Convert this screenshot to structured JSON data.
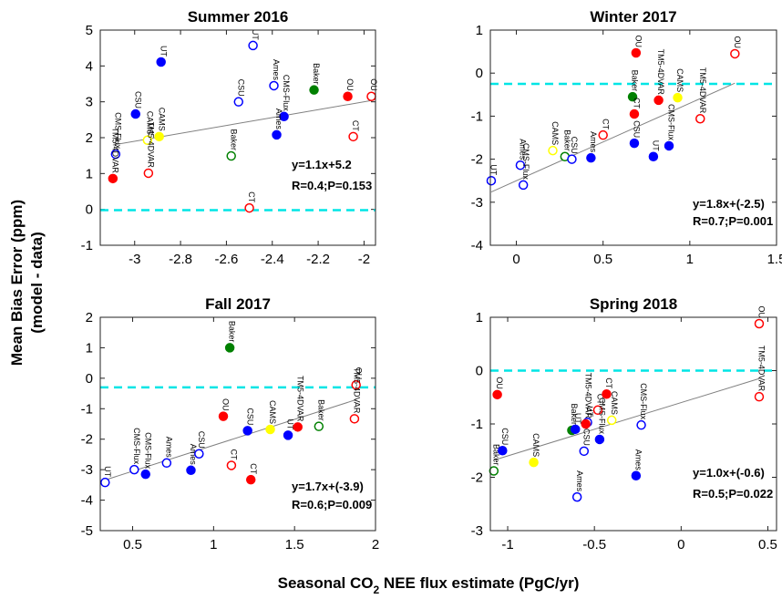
{
  "chart_data": [
    {
      "type": "scatter",
      "title": "Summer 2016",
      "xlim": [
        -3.15,
        -1.95
      ],
      "ylim": [
        -1,
        5
      ],
      "xticks": [
        -3,
        -2.8,
        -2.6,
        -2.4,
        -2.2,
        -2
      ],
      "yticks": [
        -1,
        0,
        1,
        2,
        3,
        4,
        5
      ],
      "labels": [
        "UT",
        "UT",
        "CSU",
        "CMS-Flux",
        "TM5-4DVAR",
        "CAMS",
        "CAMS",
        "TM5-4DVAR",
        "CSU",
        "Ames",
        "Baker",
        "CMS-Flux",
        "Ames",
        "Baker",
        "CT",
        "OU",
        "OU",
        "CT"
      ],
      "x": [
        -2.885,
        -2.484,
        -2.996,
        -3.083,
        -3.095,
        -2.944,
        -2.893,
        -2.94,
        -2.547,
        -2.393,
        -2.218,
        -2.349,
        -2.381,
        -2.579,
        -2.5,
        -2.071,
        -1.968,
        -2.047
      ],
      "y": [
        4.11,
        4.57,
        2.66,
        1.54,
        0.86,
        1.93,
        2.03,
        1.01,
        3.0,
        3.45,
        3.33,
        2.59,
        2.08,
        1.49,
        0.04,
        3.15,
        3.15,
        2.03
      ],
      "colors": [
        "#0000ff",
        "#0000ff",
        "#0000ff",
        "#0000ff",
        "#ff0000",
        "#ffff00",
        "#ffff00",
        "#ff0000",
        "#0000ff",
        "#0000ff",
        "#008000",
        "#0000ff",
        "#0000ff",
        "#008000",
        "#ff0000",
        "#ff0000",
        "#ff0000",
        "#ff0000"
      ],
      "filled": [
        true,
        false,
        true,
        false,
        true,
        false,
        true,
        false,
        false,
        false,
        true,
        true,
        true,
        false,
        false,
        true,
        false,
        false
      ],
      "fit_slope": 1.1,
      "fit_intercept": 5.2,
      "fit_color": "#808080",
      "fit_label": "y=1.1x+5.2",
      "stats_label": "R=0.4;P=0.153",
      "reference_y": -0.02,
      "reference_color": "#00e5e5"
    },
    {
      "type": "scatter",
      "title": "Winter 2017",
      "xlim": [
        -0.15,
        1.5
      ],
      "ylim": [
        -4,
        1
      ],
      "xticks": [
        0,
        0.5,
        1,
        1.5
      ],
      "yticks": [
        -4,
        -3,
        -2,
        -1,
        0,
        1
      ],
      "labels": [
        "UT",
        "Ames",
        "CMS-Flux",
        "CAMS",
        "Baker",
        "CSU",
        "CT",
        "Ames",
        "OU",
        "Baker",
        "CT",
        "CSU",
        "TM5-4DVAR",
        "UT",
        "CAMS",
        "CMS-Flux",
        "TM5-4DVAR",
        "OU"
      ],
      "x": [
        -0.145,
        0.023,
        0.04,
        0.21,
        0.28,
        0.32,
        0.5,
        0.43,
        0.69,
        0.67,
        0.68,
        0.68,
        0.82,
        0.79,
        0.93,
        0.88,
        1.06,
        1.26
      ],
      "y": [
        -2.5,
        -2.14,
        -2.6,
        -1.8,
        -1.94,
        -2.0,
        -1.44,
        -1.97,
        0.47,
        -0.55,
        -0.95,
        -1.63,
        -0.63,
        -1.94,
        -0.57,
        -1.69,
        -1.06,
        0.45
      ],
      "colors": [
        "#0000ff",
        "#0000ff",
        "#0000ff",
        "#ffff00",
        "#008000",
        "#0000ff",
        "#ff0000",
        "#0000ff",
        "#ff0000",
        "#008000",
        "#ff0000",
        "#0000ff",
        "#ff0000",
        "#0000ff",
        "#ffff00",
        "#0000ff",
        "#ff0000",
        "#ff0000"
      ],
      "filled": [
        false,
        false,
        false,
        false,
        false,
        false,
        false,
        true,
        true,
        true,
        true,
        true,
        true,
        true,
        true,
        true,
        false,
        false
      ],
      "fit_slope": 1.8,
      "fit_intercept": -2.5,
      "fit_color": "#808080",
      "fit_label": "y=1.8x+(-2.5)",
      "stats_label": "R=0.7;P=0.001",
      "reference_y": -0.25,
      "reference_color": "#00e5e5"
    },
    {
      "type": "scatter",
      "title": "Fall 2017",
      "xlim": [
        0.3,
        2
      ],
      "ylim": [
        -5,
        2
      ],
      "xticks": [
        0.5,
        1,
        1.5,
        2
      ],
      "yticks": [
        -5,
        -4,
        -3,
        -2,
        -1,
        0,
        1,
        2
      ],
      "labels": [
        "UT",
        "CMS-Flux",
        "CMS-Flux",
        "Ames",
        "Ames",
        "CSU",
        "OU",
        "Baker",
        "CT",
        "CT",
        "CSU",
        "CAMS",
        "UT",
        "TM5-4DVAR",
        "Baker",
        "OU",
        "TM5-4DVAR"
      ],
      "x": [
        0.33,
        0.51,
        0.58,
        0.71,
        0.86,
        0.91,
        1.06,
        1.1,
        1.11,
        1.23,
        1.21,
        1.35,
        1.46,
        1.52,
        1.65,
        1.88,
        1.87
      ],
      "y": [
        -3.42,
        -3.0,
        -3.15,
        -2.78,
        -3.02,
        -2.48,
        -1.25,
        1.0,
        -2.86,
        -3.33,
        -1.72,
        -1.68,
        -1.87,
        -1.6,
        -1.58,
        -0.22,
        -1.33
      ],
      "colors": [
        "#0000ff",
        "#0000ff",
        "#0000ff",
        "#0000ff",
        "#0000ff",
        "#0000ff",
        "#ff0000",
        "#008000",
        "#ff0000",
        "#ff0000",
        "#0000ff",
        "#ffff00",
        "#0000ff",
        "#ff0000",
        "#008000",
        "#ff0000",
        "#ff0000"
      ],
      "filled": [
        false,
        false,
        true,
        false,
        true,
        false,
        true,
        true,
        false,
        true,
        true,
        true,
        true,
        true,
        false,
        false,
        false
      ],
      "fit_slope": 1.7,
      "fit_intercept": -3.9,
      "fit_color": "#808080",
      "fit_label": "y=1.7x+(-3.9)",
      "stats_label": "R=0.6;P=0.009",
      "reference_y": -0.3,
      "reference_color": "#00e5e5"
    },
    {
      "type": "scatter",
      "title": "Spring 2018",
      "xlim": [
        -1.1,
        0.55
      ],
      "ylim": [
        -3,
        1
      ],
      "xticks": [
        -1,
        -0.5,
        0,
        0.5
      ],
      "yticks": [
        -3,
        -2,
        -1,
        0,
        1
      ],
      "labels": [
        "Baker",
        "CSU",
        "OU",
        "CAMS",
        "Baker",
        "UT",
        "Ames",
        "CSU",
        "UT",
        "TM5-4DVAR",
        "CT",
        "CT",
        "CAMS",
        "CMS-Flux",
        "CMS-Flux",
        "Ames",
        "OU",
        "TM5-4DVAR"
      ],
      "x": [
        -1.08,
        -1.03,
        -1.06,
        -0.85,
        -0.63,
        -0.61,
        -0.6,
        -0.56,
        -0.54,
        -0.55,
        -0.48,
        -0.43,
        -0.4,
        -0.47,
        -0.23,
        -0.26,
        0.45,
        0.45
      ],
      "y": [
        -1.88,
        -1.5,
        -0.45,
        -1.72,
        -1.12,
        -1.1,
        -2.37,
        -1.51,
        -0.97,
        -1.0,
        -0.74,
        -0.44,
        -0.93,
        -1.29,
        -1.02,
        -1.97,
        0.88,
        -0.49
      ],
      "colors": [
        "#008000",
        "#0000ff",
        "#ff0000",
        "#ffff00",
        "#008000",
        "#0000ff",
        "#0000ff",
        "#0000ff",
        "#0000ff",
        "#ff0000",
        "#ff0000",
        "#ff0000",
        "#ffff00",
        "#0000ff",
        "#0000ff",
        "#0000ff",
        "#ff0000",
        "#ff0000"
      ],
      "filled": [
        false,
        true,
        true,
        true,
        true,
        true,
        false,
        false,
        false,
        true,
        false,
        true,
        false,
        true,
        false,
        true,
        false,
        false
      ],
      "fit_slope": 1.0,
      "fit_intercept": -0.6,
      "fit_color": "#808080",
      "fit_label": "y=1.0x+(-0.6)",
      "stats_label": "R=0.5;P=0.022",
      "reference_y": 0,
      "reference_color": "#00e5e5"
    }
  ],
  "ylabel": [
    "Mean Bias Error (ppm)",
    "(model - data)"
  ],
  "xlabel": [
    "Seasonal CO",
    "2",
    " NEE flux estimate (PgC/yr)"
  ]
}
